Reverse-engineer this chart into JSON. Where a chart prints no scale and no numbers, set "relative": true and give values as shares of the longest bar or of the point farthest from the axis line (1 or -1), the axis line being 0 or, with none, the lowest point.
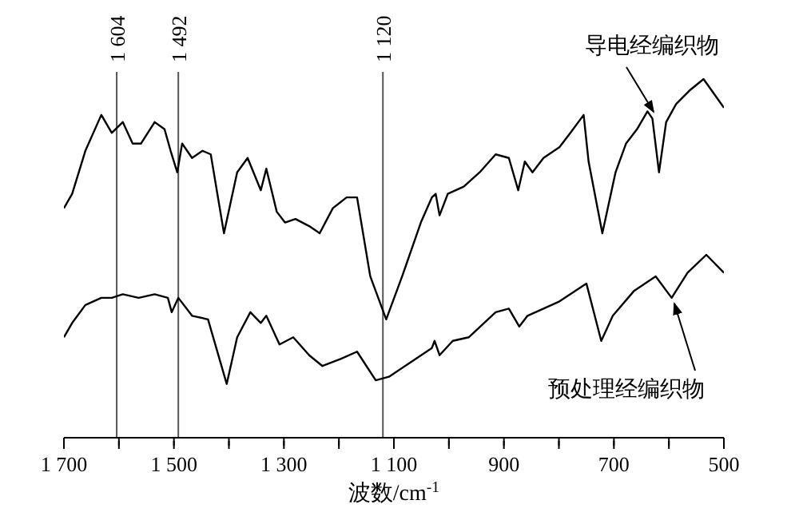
{
  "chart_data": {
    "type": "line",
    "relative": true,
    "xlabel": "波数/cm$^{-1}$",
    "xlim": [
      1700,
      500
    ],
    "xticks": [
      {
        "value": 1700,
        "label": "1 700"
      },
      {
        "value": 1600,
        "label": null
      },
      {
        "value": 1500,
        "label": "1 500"
      },
      {
        "value": 1400,
        "label": null
      },
      {
        "value": 1300,
        "label": "1 300"
      },
      {
        "value": 1200,
        "label": null
      },
      {
        "value": 1100,
        "label": "1 100"
      },
      {
        "value": 1000,
        "label": null
      },
      {
        "value": 900,
        "label": "900"
      },
      {
        "value": 800,
        "label": null
      },
      {
        "value": 700,
        "label": "700"
      },
      {
        "value": 600,
        "label": null
      },
      {
        "value": 500,
        "label": "500"
      }
    ],
    "grid": false,
    "legend": false,
    "marker": "none",
    "line_style": "solid",
    "ref_lines": [
      {
        "axis": "x",
        "value": 1604,
        "label": "1 604",
        "color": "#555555"
      },
      {
        "axis": "x",
        "value": 1492,
        "label": "1 492",
        "color": "#555555"
      },
      {
        "axis": "x",
        "value": 1120,
        "label": "1 120",
        "color": "#555555"
      }
    ],
    "series": [
      {
        "name": "导电经编织物",
        "color": "#000000",
        "x": [
          1700,
          1685,
          1661,
          1632,
          1613,
          1593,
          1575,
          1560,
          1535,
          1517,
          1506,
          1494,
          1485,
          1467,
          1448,
          1433,
          1409,
          1385,
          1366,
          1342,
          1332,
          1313,
          1298,
          1279,
          1254,
          1235,
          1211,
          1186,
          1167,
          1143,
          1114,
          1085,
          1051,
          1031,
          1024,
          1017,
          1002,
          973,
          944,
          915,
          891,
          874,
          862,
          848,
          828,
          799,
          779,
          755,
          746,
          721,
          697,
          678,
          658,
          639,
          630,
          618,
          605,
          587,
          561,
          537,
          523,
          500
        ],
        "values": [
          0.64,
          0.68,
          0.8,
          0.9,
          0.85,
          0.88,
          0.82,
          0.82,
          0.88,
          0.86,
          0.8,
          0.74,
          0.82,
          0.78,
          0.8,
          0.79,
          0.57,
          0.74,
          0.78,
          0.69,
          0.75,
          0.63,
          0.6,
          0.61,
          0.59,
          0.57,
          0.64,
          0.67,
          0.67,
          0.45,
          0.33,
          0.45,
          0.6,
          0.67,
          0.68,
          0.62,
          0.68,
          0.7,
          0.74,
          0.79,
          0.78,
          0.69,
          0.77,
          0.74,
          0.78,
          0.81,
          0.85,
          0.9,
          0.77,
          0.57,
          0.74,
          0.82,
          0.86,
          0.91,
          0.89,
          0.74,
          0.88,
          0.93,
          0.97,
          1.0,
          0.97,
          0.92
        ]
      },
      {
        "name": "预处理经编织物",
        "color": "#000000",
        "x": [
          1700,
          1685,
          1661,
          1632,
          1613,
          1593,
          1564,
          1535,
          1511,
          1504,
          1492,
          1467,
          1438,
          1404,
          1385,
          1361,
          1342,
          1332,
          1308,
          1283,
          1254,
          1230,
          1196,
          1167,
          1133,
          1109,
          1070,
          1031,
          1026,
          1017,
          993,
          964,
          915,
          891,
          872,
          857,
          799,
          750,
          723,
          702,
          663,
          624,
          595,
          566,
          532,
          500
        ],
        "values": [
          0.28,
          0.32,
          0.37,
          0.39,
          0.39,
          0.4,
          0.39,
          0.4,
          0.39,
          0.35,
          0.39,
          0.34,
          0.33,
          0.15,
          0.28,
          0.35,
          0.32,
          0.34,
          0.26,
          0.28,
          0.23,
          0.2,
          0.22,
          0.24,
          0.16,
          0.17,
          0.21,
          0.25,
          0.27,
          0.23,
          0.27,
          0.28,
          0.35,
          0.36,
          0.31,
          0.34,
          0.38,
          0.43,
          0.27,
          0.34,
          0.41,
          0.45,
          0.39,
          0.46,
          0.51,
          0.46
        ]
      }
    ]
  }
}
